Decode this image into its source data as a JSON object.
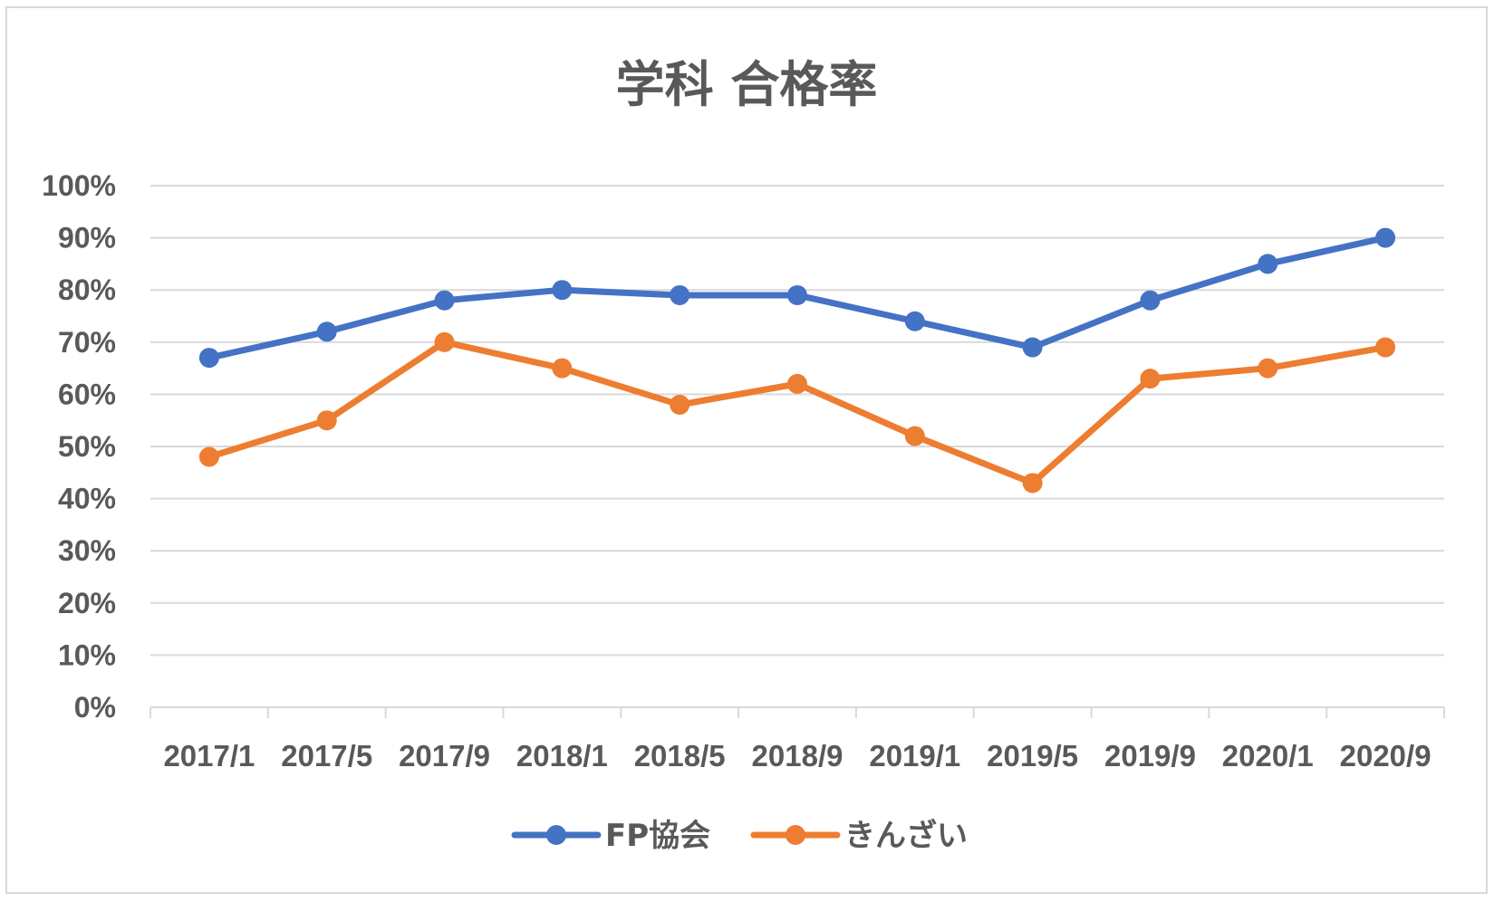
{
  "chart_data": {
    "type": "line",
    "title": "学科 合格率",
    "categories": [
      "2017/1",
      "2017/5",
      "2017/9",
      "2018/1",
      "2018/5",
      "2018/9",
      "2019/1",
      "2019/5",
      "2019/9",
      "2020/1",
      "2020/9"
    ],
    "yticks": [
      "0%",
      "10%",
      "20%",
      "30%",
      "40%",
      "50%",
      "60%",
      "70%",
      "80%",
      "90%",
      "100%"
    ],
    "ylim": [
      0,
      100
    ],
    "grid": true,
    "legend_position": "bottom",
    "series": [
      {
        "name": "FP協会",
        "color": "#4472c4",
        "values": [
          67,
          72,
          78,
          80,
          79,
          79,
          74,
          69,
          78,
          85,
          90
        ]
      },
      {
        "name": "きんざい",
        "color": "#ed7d31",
        "values": [
          48,
          55,
          70,
          65,
          58,
          62,
          52,
          43,
          63,
          65,
          69
        ]
      }
    ]
  }
}
